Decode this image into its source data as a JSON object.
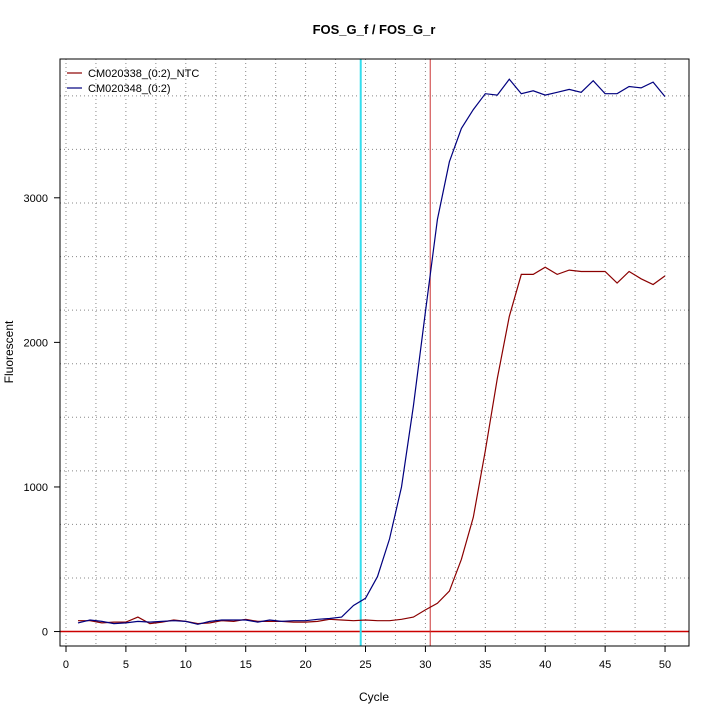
{
  "chart_data": {
    "type": "line",
    "title": "FOS_G_f / FOS_G_r",
    "xlabel": "Cycle",
    "ylabel": "Fluorescent",
    "xlim": [
      -0.5,
      52
    ],
    "ylim": [
      -100,
      3960
    ],
    "x_ticks": [
      0,
      5,
      10,
      15,
      20,
      25,
      30,
      35,
      40,
      45,
      50
    ],
    "y_ticks": [
      0,
      1000,
      2000,
      3000
    ],
    "grid": true,
    "legend_position": "top-left",
    "x": [
      1,
      2,
      3,
      4,
      5,
      6,
      7,
      8,
      9,
      10,
      11,
      12,
      13,
      14,
      15,
      16,
      17,
      18,
      19,
      20,
      21,
      22,
      23,
      24,
      25,
      26,
      27,
      28,
      29,
      30,
      31,
      32,
      33,
      34,
      35,
      36,
      37,
      38,
      39,
      40,
      41,
      42,
      43,
      44,
      45,
      46,
      47,
      48,
      49,
      50
    ],
    "series": [
      {
        "name": "CM020338_(0:2)_NTC",
        "color": "#8b0000",
        "values": [
          75,
          75,
          60,
          65,
          65,
          100,
          55,
          65,
          80,
          70,
          55,
          60,
          75,
          70,
          85,
          70,
          70,
          70,
          65,
          65,
          70,
          85,
          80,
          75,
          80,
          75,
          75,
          85,
          100,
          150,
          195,
          280,
          500,
          790,
          1250,
          1750,
          2180,
          2470,
          2470,
          2520,
          2470,
          2500,
          2490,
          2490,
          2490,
          2410,
          2490,
          2440,
          2400,
          2460
        ]
      },
      {
        "name": "CM020348_(0:2)",
        "color": "#00007f",
        "values": [
          60,
          80,
          70,
          55,
          60,
          70,
          65,
          70,
          75,
          70,
          50,
          70,
          80,
          80,
          80,
          65,
          80,
          70,
          75,
          75,
          85,
          90,
          100,
          180,
          230,
          380,
          640,
          1000,
          1560,
          2210,
          2850,
          3250,
          3480,
          3610,
          3720,
          3710,
          3820,
          3720,
          3740,
          3710,
          3730,
          3750,
          3730,
          3810,
          3720,
          3720,
          3770,
          3760,
          3800,
          3700
        ]
      }
    ],
    "reference_lines": {
      "threshold_y": 0,
      "ct_line_x": 30.4,
      "baseline_x": 24.6
    }
  }
}
